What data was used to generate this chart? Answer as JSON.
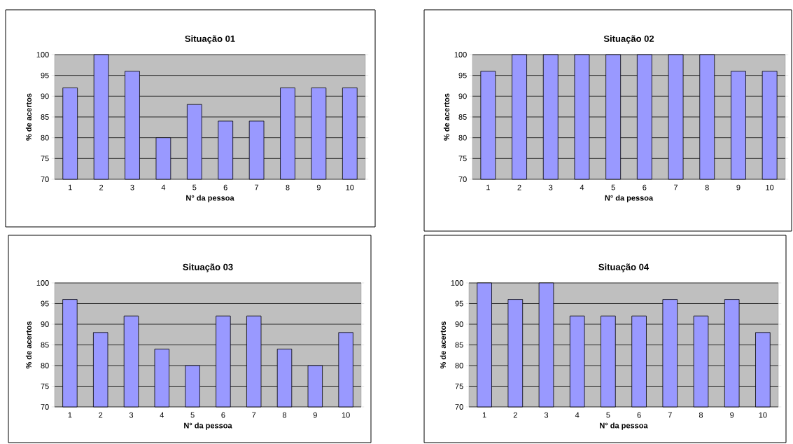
{
  "chart_data": [
    {
      "type": "bar",
      "title": "Situação 01",
      "xlabel": "N° da pessoa",
      "ylabel": "% de acertos",
      "categories": [
        "1",
        "2",
        "3",
        "4",
        "5",
        "6",
        "7",
        "8",
        "9",
        "10"
      ],
      "values": [
        92,
        100,
        96,
        80,
        88,
        84,
        84,
        92,
        92,
        92
      ],
      "color": "#9999ff",
      "ylim": [
        70,
        100
      ],
      "yticks": [
        70,
        75,
        80,
        85,
        90,
        95,
        100
      ],
      "grid": "y"
    },
    {
      "type": "bar",
      "title": "Situação 02",
      "xlabel": "N° da pessoa",
      "ylabel": "% de acertos",
      "categories": [
        "1",
        "2",
        "3",
        "4",
        "5",
        "6",
        "7",
        "8",
        "9",
        "10"
      ],
      "values": [
        96,
        100,
        100,
        100,
        100,
        100,
        100,
        100,
        96,
        96
      ],
      "color": "#9999ff",
      "ylim": [
        70,
        100
      ],
      "yticks": [
        70,
        75,
        80,
        85,
        90,
        95,
        100
      ],
      "grid": "y"
    },
    {
      "type": "bar",
      "title": "Situação 03",
      "xlabel": "N° da pessoa",
      "ylabel": "% de acertos",
      "categories": [
        "1",
        "2",
        "3",
        "4",
        "5",
        "6",
        "7",
        "8",
        "9",
        "10"
      ],
      "values": [
        96,
        88,
        92,
        84,
        80,
        92,
        92,
        84,
        80,
        88
      ],
      "color": "#9999ff",
      "ylim": [
        70,
        100
      ],
      "yticks": [
        70,
        75,
        80,
        85,
        90,
        95,
        100
      ],
      "grid": "y"
    },
    {
      "type": "bar",
      "title": "Situação 04",
      "xlabel": "N° da pessoa",
      "ylabel": "% de acertos",
      "categories": [
        "1",
        "2",
        "3",
        "4",
        "5",
        "6",
        "7",
        "8",
        "9",
        "10"
      ],
      "values": [
        100,
        96,
        100,
        92,
        92,
        92,
        96,
        92,
        96,
        88
      ],
      "color": "#9999ff",
      "ylim": [
        70,
        100
      ],
      "yticks": [
        70,
        75,
        80,
        85,
        90,
        95,
        100
      ],
      "grid": "y"
    }
  ]
}
